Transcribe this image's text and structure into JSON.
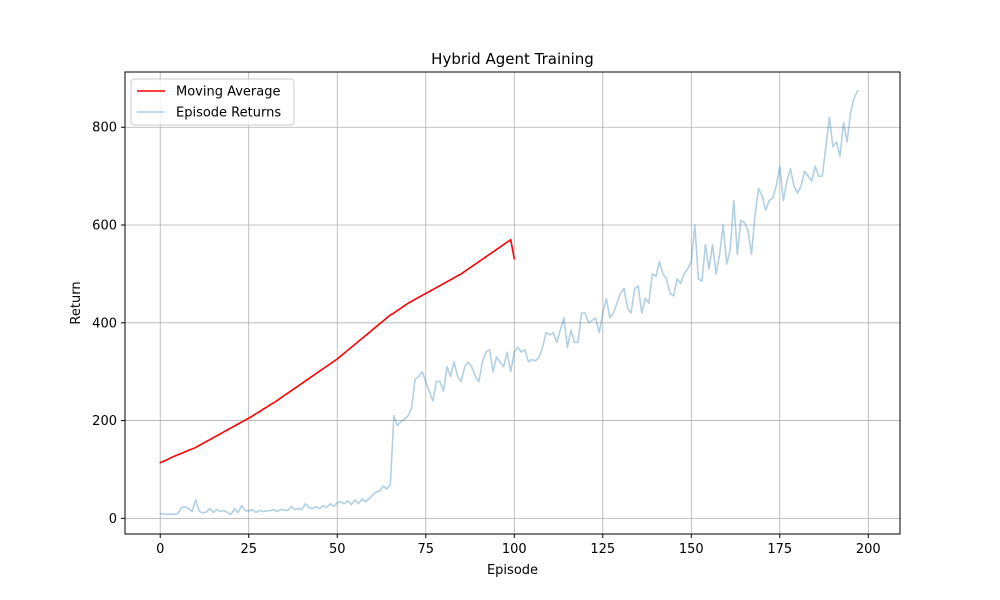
{
  "chart_data": {
    "type": "line",
    "title": "Hybrid Agent Training",
    "xlabel": "Episode",
    "ylabel": "Return",
    "xlim": [
      -9.95,
      208.95
    ],
    "ylim": [
      -32,
      913
    ],
    "x_ticks": [
      0,
      25,
      50,
      75,
      100,
      125,
      150,
      175,
      200
    ],
    "y_ticks": [
      0,
      200,
      400,
      600,
      800
    ],
    "x_tick_labels": [
      "0",
      "25",
      "50",
      "75",
      "100",
      "125",
      "150",
      "175",
      "200"
    ],
    "y_tick_labels": [
      "0",
      "200",
      "400",
      "600",
      "800"
    ],
    "grid": true,
    "legend": {
      "position": "top-left"
    },
    "series": [
      {
        "name": "Moving Average",
        "color": "#ff0000",
        "x_start": 0,
        "values": [
          114,
          117,
          120,
          124,
          127,
          130,
          133,
          136,
          139,
          142,
          145,
          149,
          153,
          157,
          161,
          165,
          169,
          173,
          177,
          181,
          185,
          189,
          193,
          197,
          201,
          205,
          209,
          214,
          218,
          223,
          227,
          232,
          236,
          241,
          246,
          251,
          256,
          261,
          266,
          271,
          276,
          281,
          286,
          291,
          296,
          301,
          306,
          311,
          316,
          321,
          326,
          332,
          338,
          344,
          350,
          356,
          362,
          368,
          374,
          380,
          386,
          392,
          398,
          404,
          410,
          416,
          420,
          425,
          430,
          435,
          440,
          444,
          448,
          452,
          456,
          460,
          464,
          468,
          472,
          476,
          480,
          484,
          488,
          492,
          496,
          500,
          505,
          510,
          515,
          520,
          525,
          530,
          535,
          540,
          545,
          550,
          555,
          560,
          565,
          570,
          531
        ]
      },
      {
        "name": "Episode Returns",
        "color": "#1f77b4",
        "x_start": 0,
        "values": [
          10,
          9,
          8,
          9,
          8,
          10,
          22,
          24,
          20,
          14,
          38,
          15,
          11,
          13,
          20,
          12,
          18,
          14,
          16,
          12,
          8,
          20,
          12,
          26,
          16,
          15,
          18,
          12,
          16,
          14,
          15,
          16,
          18,
          14,
          18,
          17,
          16,
          24,
          18,
          20,
          18,
          30,
          22,
          20,
          24,
          20,
          26,
          22,
          30,
          24,
          32,
          34,
          30,
          36,
          28,
          38,
          30,
          40,
          34,
          40,
          48,
          54,
          56,
          66,
          60,
          70,
          210,
          190,
          198,
          203,
          210,
          225,
          285,
          290,
          300,
          280,
          260,
          240,
          280,
          280,
          260,
          310,
          290,
          320,
          290,
          280,
          310,
          320,
          310,
          290,
          280,
          320,
          340,
          345,
          300,
          330,
          320,
          310,
          340,
          300,
          340,
          350,
          340,
          345,
          320,
          325,
          322,
          330,
          350,
          380,
          375,
          380,
          360,
          385,
          410,
          350,
          385,
          360,
          360,
          420,
          420,
          400,
          405,
          410,
          380,
          420,
          450,
          410,
          420,
          440,
          460,
          470,
          430,
          420,
          470,
          475,
          420,
          450,
          440,
          500,
          495,
          525,
          500,
          490,
          460,
          455,
          490,
          480,
          500,
          510,
          525,
          600,
          490,
          485,
          560,
          510,
          560,
          500,
          540,
          600,
          520,
          550,
          650,
          540,
          610,
          605,
          590,
          540,
          620,
          675,
          660,
          630,
          650,
          655,
          680,
          720,
          650,
          690,
          715,
          680,
          665,
          680,
          710,
          700,
          690,
          720,
          700,
          700,
          760,
          820,
          760,
          770,
          740,
          810,
          770,
          830,
          860,
          875
        ]
      }
    ]
  }
}
